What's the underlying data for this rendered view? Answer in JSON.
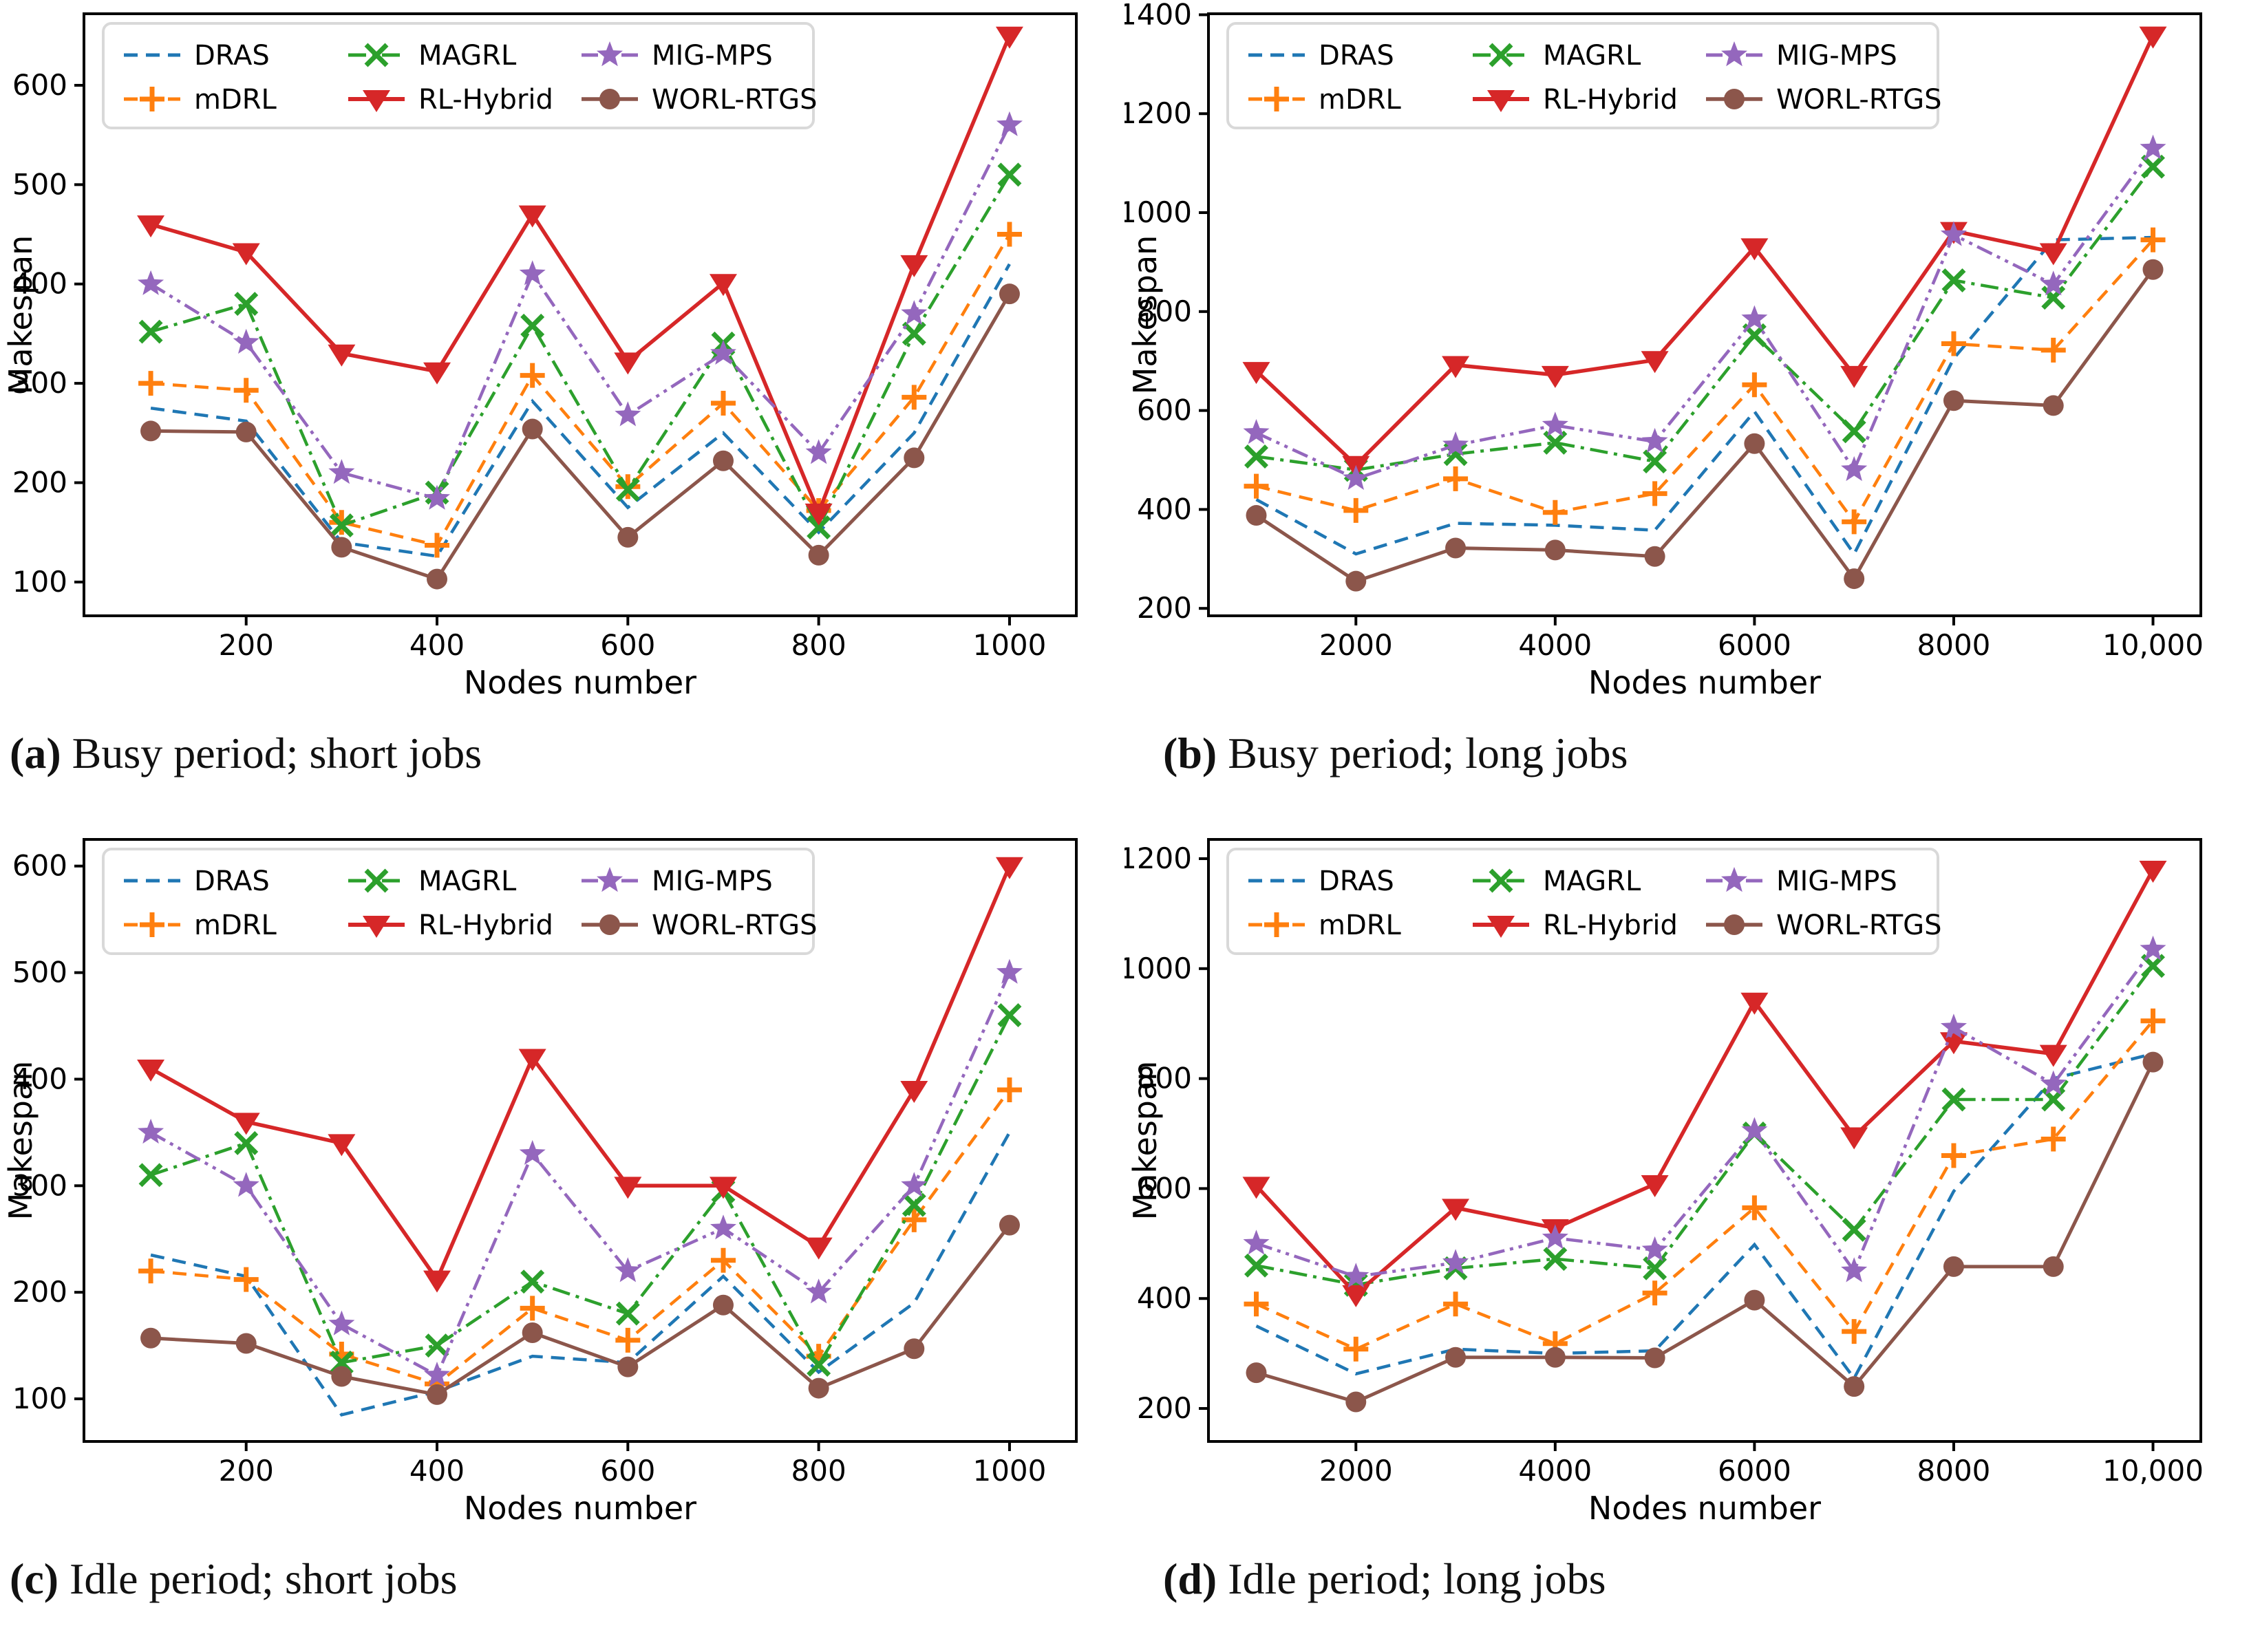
{
  "figure_type": "2x2 line-chart figure comparing scheduling algorithms",
  "colors": {
    "DRAS": "#1f77b4",
    "mDRL": "#ff7f0e",
    "MAGRL": "#2ca02c",
    "RL-Hybrid": "#d62728",
    "MIG-MPS": "#9467bd",
    "WORL-RTGS": "#8c564b",
    "axis": "#000000",
    "legend_border": "#d9d9d9"
  },
  "series_meta": [
    {
      "key": "DRAS",
      "label": "DRAS",
      "color": "#1f77b4",
      "dash": "20 12",
      "marker": "none",
      "line_width": 4.5
    },
    {
      "key": "mDRL",
      "label": "mDRL",
      "color": "#ff7f0e",
      "dash": "20 12",
      "marker": "plus-marker-icon",
      "line_width": 4.5
    },
    {
      "key": "MAGRL",
      "label": "MAGRL",
      "color": "#2ca02c",
      "dash": "26 9 5 9",
      "marker": "x-marker-icon",
      "line_width": 4.5
    },
    {
      "key": "RL-Hybrid",
      "label": "RL-Hybrid",
      "color": "#d62728",
      "dash": "",
      "marker": "triangle-down-marker-icon",
      "line_width": 5.5
    },
    {
      "key": "MIG-MPS",
      "label": "MIG-MPS",
      "color": "#9467bd",
      "dash": "24 8 5 8 5 8",
      "marker": "star-marker-icon",
      "line_width": 4.5
    },
    {
      "key": "WORL-RTGS",
      "label": "WORL-RTGS",
      "color": "#8c564b",
      "dash": "",
      "marker": "circle-marker-icon",
      "line_width": 5
    }
  ],
  "legend_order_columns": [
    [
      "DRAS",
      "mDRL"
    ],
    [
      "MAGRL",
      "RL-Hybrid"
    ],
    [
      "MIG-MPS",
      "WORL-RTGS"
    ]
  ],
  "chart_data": [
    {
      "id": "a",
      "type": "line",
      "caption_label": "(a)",
      "caption_text": "Busy period; short jobs",
      "xlabel": "Nodes number",
      "ylabel": "Makespan",
      "x": [
        100,
        200,
        300,
        400,
        500,
        600,
        700,
        800,
        900,
        1000
      ],
      "xticks": [
        200,
        400,
        600,
        800,
        1000
      ],
      "xtick_labels": [
        "200",
        "400",
        "600",
        "800",
        "1000"
      ],
      "yticks": [
        100,
        200,
        300,
        400,
        500,
        600
      ],
      "xlim": [
        30,
        1070
      ],
      "ylim": [
        66,
        672
      ],
      "legend_position": "upper left",
      "series": {
        "DRAS": [
          275,
          262,
          140,
          126,
          282,
          175,
          250,
          150,
          250,
          420
        ],
        "mDRL": [
          300,
          293,
          160,
          137,
          308,
          196,
          280,
          172,
          286,
          450
        ],
        "MAGRL": [
          352,
          380,
          157,
          190,
          358,
          193,
          340,
          155,
          350,
          510
        ],
        "RL-Hybrid": [
          460,
          432,
          330,
          312,
          470,
          322,
          401,
          170,
          420,
          650
        ],
        "MIG-MPS": [
          400,
          341,
          210,
          184,
          410,
          268,
          330,
          230,
          370,
          560
        ],
        "WORL-RTGS": [
          252,
          251,
          135,
          103,
          254,
          145,
          222,
          127,
          225,
          390
        ]
      }
    },
    {
      "id": "b",
      "type": "line",
      "caption_label": "(b)",
      "caption_text": "Busy period; long jobs",
      "xlabel": "Nodes number",
      "ylabel": "Makespan",
      "x": [
        1000,
        2000,
        3000,
        4000,
        5000,
        6000,
        7000,
        8000,
        9000,
        10000
      ],
      "xticks": [
        2000,
        4000,
        6000,
        8000,
        10000
      ],
      "xtick_labels": [
        "2000",
        "4000",
        "6000",
        "8000",
        "10,000"
      ],
      "yticks": [
        200,
        400,
        600,
        800,
        1000,
        1200,
        1400
      ],
      "xlim": [
        520,
        10480
      ],
      "ylim": [
        185,
        1402
      ],
      "legend_position": "upper left",
      "series": {
        "DRAS": [
          420,
          310,
          372,
          368,
          358,
          598,
          310,
          705,
          945,
          950
        ],
        "mDRL": [
          447,
          398,
          462,
          394,
          432,
          652,
          375,
          735,
          722,
          945
        ],
        "MAGRL": [
          507,
          480,
          512,
          535,
          497,
          752,
          558,
          863,
          828,
          1093
        ],
        "RL-Hybrid": [
          680,
          490,
          692,
          672,
          702,
          930,
          672,
          963,
          920,
          1358
        ],
        "MIG-MPS": [
          555,
          462,
          530,
          570,
          537,
          785,
          480,
          955,
          855,
          1130
        ],
        "WORL-RTGS": [
          388,
          255,
          322,
          318,
          305,
          533,
          260,
          620,
          610,
          885
        ]
      }
    },
    {
      "id": "c",
      "type": "line",
      "caption_label": "(c)",
      "caption_text": "Idle period; short jobs",
      "xlabel": "Nodes number",
      "ylabel": "Makespan",
      "x": [
        100,
        200,
        300,
        400,
        500,
        600,
        700,
        800,
        900,
        1000
      ],
      "xticks": [
        200,
        400,
        600,
        800,
        1000
      ],
      "xtick_labels": [
        "200",
        "400",
        "600",
        "800",
        "1000"
      ],
      "yticks": [
        100,
        200,
        300,
        400,
        500,
        600
      ],
      "xlim": [
        30,
        1070
      ],
      "ylim": [
        60,
        625
      ],
      "legend_position": "upper left",
      "series": {
        "DRAS": [
          235,
          215,
          85,
          107,
          140,
          134,
          215,
          125,
          190,
          350
        ],
        "mDRL": [
          220,
          212,
          142,
          114,
          185,
          155,
          230,
          140,
          268,
          390
        ],
        "MAGRL": [
          310,
          340,
          134,
          150,
          210,
          180,
          295,
          132,
          282,
          460
        ],
        "RL-Hybrid": [
          410,
          360,
          340,
          212,
          420,
          300,
          300,
          243,
          390,
          600
        ],
        "MIG-MPS": [
          350,
          300,
          170,
          122,
          330,
          220,
          260,
          200,
          300,
          500
        ],
        "WORL-RTGS": [
          157,
          152,
          121,
          104,
          162,
          130,
          188,
          110,
          147,
          263
        ]
      }
    },
    {
      "id": "d",
      "type": "line",
      "caption_label": "(d)",
      "caption_text": "Idle period; long jobs",
      "xlabel": "Nodes number",
      "ylabel": "Makespan",
      "x": [
        1000,
        2000,
        3000,
        4000,
        5000,
        6000,
        7000,
        8000,
        9000,
        10000
      ],
      "xticks": [
        2000,
        4000,
        6000,
        8000,
        10000
      ],
      "xtick_labels": [
        "2000",
        "4000",
        "6000",
        "8000",
        "10,000"
      ],
      "yticks": [
        200,
        400,
        600,
        800,
        1000,
        1200
      ],
      "xlim": [
        520,
        10480
      ],
      "ylim": [
        140,
        1235
      ],
      "legend_position": "upper left",
      "series": {
        "DRAS": [
          350,
          263,
          308,
          300,
          305,
          498,
          255,
          595,
          800,
          845
        ],
        "mDRL": [
          390,
          308,
          390,
          318,
          410,
          565,
          340,
          660,
          690,
          905
        ],
        "MAGRL": [
          460,
          425,
          455,
          472,
          455,
          700,
          525,
          762,
          762,
          1005
        ],
        "RL-Hybrid": [
          605,
          408,
          565,
          528,
          608,
          940,
          695,
          868,
          845,
          1180
        ],
        "MIG-MPS": [
          500,
          440,
          465,
          510,
          488,
          705,
          450,
          893,
          790,
          1035
        ],
        "WORL-RTGS": [
          265,
          212,
          293,
          293,
          292,
          397,
          240,
          458,
          458,
          830
        ]
      }
    }
  ]
}
